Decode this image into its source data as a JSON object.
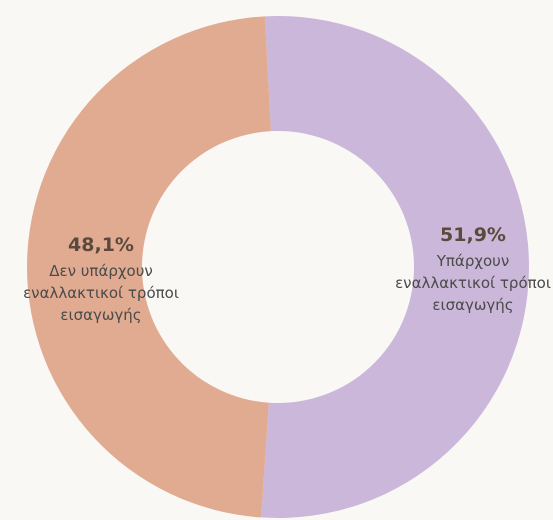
{
  "chart_data": {
    "type": "donut",
    "categories": [
      "Υπάρχουν εναλλακτικοί τρόποι εισαγωγής",
      "Δεν υπάρχουν εναλλακτικοί τρόποι εισαγωγής"
    ],
    "values": [
      51.9,
      48.1
    ],
    "value_labels": [
      "51,9%",
      "48,1%"
    ],
    "colors": [
      "#cbb7d9",
      "#e1ab92"
    ]
  }
}
